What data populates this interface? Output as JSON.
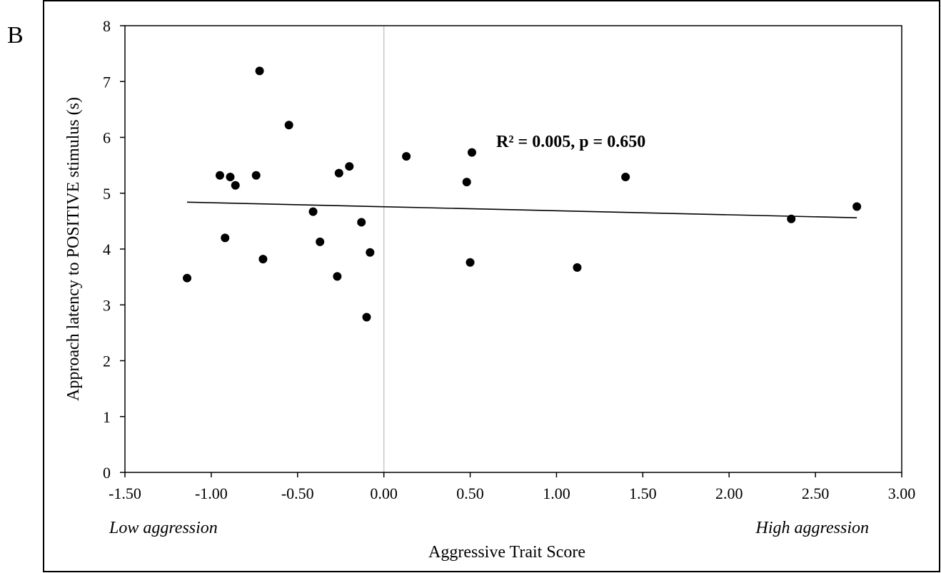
{
  "panel_label": "B",
  "chart_data": {
    "type": "scatter",
    "xlabel": "Aggressive Trait Score",
    "ylabel": "Approach latency to POSITIVE stimulus (s)",
    "xlim": [
      -1.5,
      3.0
    ],
    "ylim": [
      0,
      8
    ],
    "x_ticks": [
      -1.5,
      -1.0,
      -0.5,
      0.0,
      0.5,
      1.0,
      1.5,
      2.0,
      2.5,
      3.0
    ],
    "x_tick_labels": [
      "-1.50",
      "-1.00",
      "-0.50",
      "0.00",
      "0.50",
      "1.00",
      "1.50",
      "2.00",
      "2.50",
      "3.00"
    ],
    "y_ticks": [
      0,
      1,
      2,
      3,
      4,
      5,
      6,
      7,
      8
    ],
    "y_tick_labels": [
      "0",
      "1",
      "2",
      "3",
      "4",
      "5",
      "6",
      "7",
      "8"
    ],
    "grid": false,
    "zero_line": "vertical at x = 0.00",
    "annotation": "R² =  0.005, p = 0.650",
    "x_axis_notes": {
      "left": "Low aggression",
      "right": "High aggression"
    },
    "points": [
      {
        "x": -1.14,
        "y": 3.48
      },
      {
        "x": -0.95,
        "y": 5.32
      },
      {
        "x": -0.92,
        "y": 4.2
      },
      {
        "x": -0.89,
        "y": 5.29
      },
      {
        "x": -0.86,
        "y": 5.14
      },
      {
        "x": -0.74,
        "y": 5.32
      },
      {
        "x": -0.72,
        "y": 7.19
      },
      {
        "x": -0.7,
        "y": 3.82
      },
      {
        "x": -0.55,
        "y": 6.22
      },
      {
        "x": -0.41,
        "y": 4.67
      },
      {
        "x": -0.37,
        "y": 4.13
      },
      {
        "x": -0.27,
        "y": 3.51
      },
      {
        "x": -0.26,
        "y": 5.36
      },
      {
        "x": -0.2,
        "y": 5.48
      },
      {
        "x": -0.13,
        "y": 4.48
      },
      {
        "x": -0.1,
        "y": 2.78
      },
      {
        "x": -0.08,
        "y": 3.94
      },
      {
        "x": 0.13,
        "y": 5.66
      },
      {
        "x": 0.48,
        "y": 5.2
      },
      {
        "x": 0.5,
        "y": 3.76
      },
      {
        "x": 0.51,
        "y": 5.73
      },
      {
        "x": 1.12,
        "y": 3.67
      },
      {
        "x": 1.4,
        "y": 5.29
      },
      {
        "x": 2.36,
        "y": 4.54
      },
      {
        "x": 2.74,
        "y": 4.76
      }
    ],
    "trendline": {
      "x": [
        -1.14,
        2.74
      ],
      "y": [
        4.84,
        4.56
      ]
    },
    "colors": {
      "points": "#000000",
      "trendline": "#000000",
      "zero_line": "#c8c8c8",
      "border": "#000000"
    }
  }
}
